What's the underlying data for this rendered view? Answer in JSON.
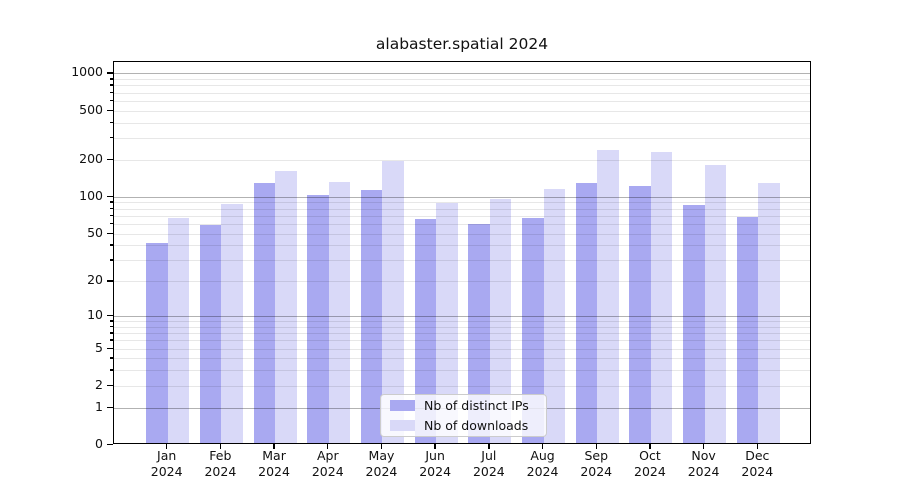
{
  "title": "alabaster.spatial 2024",
  "chart_data": {
    "type": "bar",
    "title": "alabaster.spatial 2024",
    "categories": [
      "Jan",
      "Feb",
      "Mar",
      "Apr",
      "May",
      "Jun",
      "Jul",
      "Aug",
      "Sep",
      "Oct",
      "Nov",
      "Dec"
    ],
    "year": "2024",
    "series": [
      {
        "name": "Nb of distinct IPs",
        "color": "#a9a9f1",
        "values": [
          40,
          57,
          125,
          99,
          109,
          64,
          58,
          65,
          126,
          118,
          82,
          66
        ]
      },
      {
        "name": "Nb of downloads",
        "color": "#d9d9f8",
        "values": [
          65,
          84,
          155,
          127,
          188,
          86,
          93,
          112,
          233,
          222,
          175,
          125
        ]
      }
    ],
    "xlabel": "",
    "ylabel": "",
    "yscale": "log1p",
    "ylim": [
      0,
      1238
    ],
    "ytick_values": [
      0,
      1,
      2,
      5,
      10,
      20,
      50,
      100,
      200,
      500,
      1000
    ],
    "ytick_labels": [
      "0",
      "1",
      "2",
      "5",
      "10",
      "20",
      "50",
      "100",
      "200",
      "500",
      "1000"
    ],
    "major_gridlines": [
      1,
      10,
      100,
      1000
    ],
    "minor_gridlines": [
      2,
      3,
      4,
      5,
      6,
      7,
      8,
      9,
      20,
      30,
      40,
      50,
      60,
      70,
      80,
      90,
      200,
      300,
      400,
      500,
      600,
      700,
      800,
      900
    ],
    "grid": true,
    "bar_width_fraction": 0.4,
    "legend_position": "lower center"
  },
  "legend": {
    "items": [
      "Nb of distinct IPs",
      "Nb of downloads"
    ]
  },
  "colors": {
    "bar_distinct_ips": "#a9a9f1",
    "bar_downloads": "#d9d9f8",
    "major_grid": "rgba(0,0,0,0.30)",
    "minor_grid": "rgba(0,0,0,0.095)",
    "spine": "#000000",
    "text": "#111111",
    "legend_border": "#cccccc",
    "legend_background": "rgba(255,255,255,0.8)"
  }
}
